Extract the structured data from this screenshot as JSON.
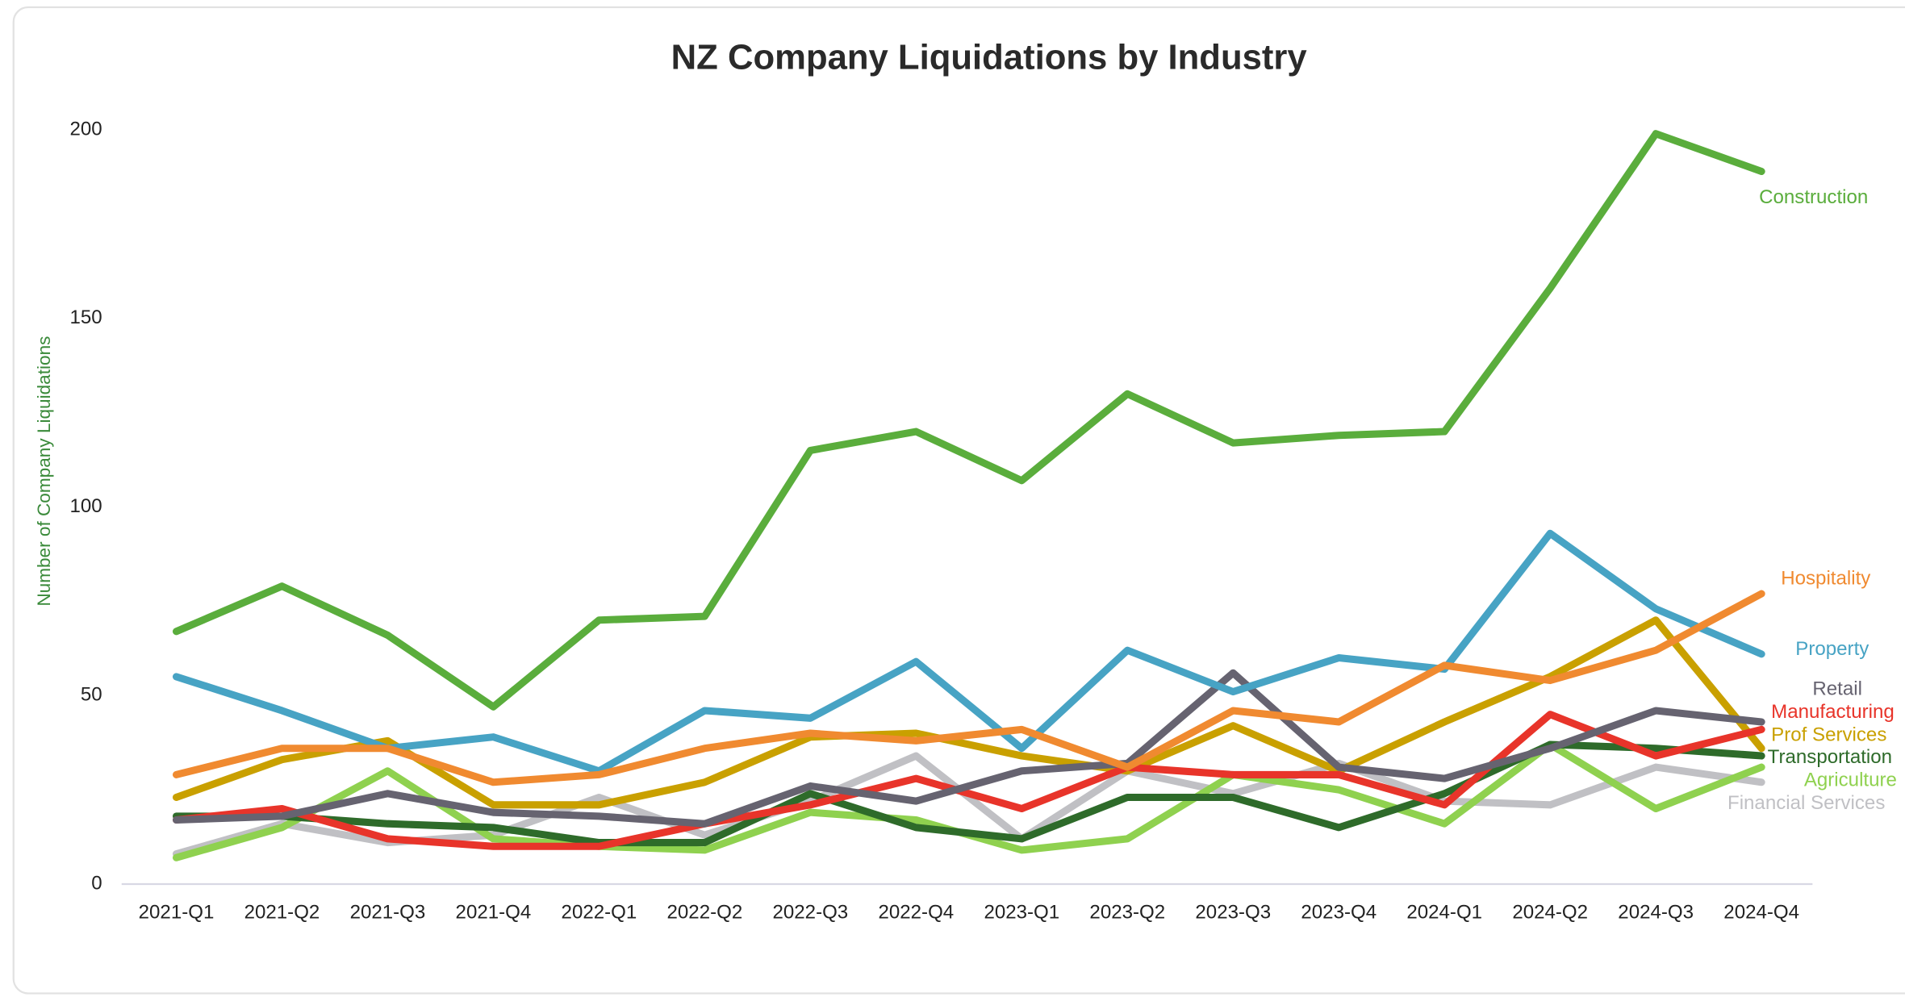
{
  "chart_data": {
    "type": "line",
    "title": "NZ Company Liquidations by Industry",
    "y_label": "Number of Company Liquidations",
    "categories": [
      "2021-Q1",
      "2021-Q2",
      "2021-Q3",
      "2021-Q4",
      "2022-Q1",
      "2022-Q2",
      "2022-Q3",
      "2022-Q4",
      "2023-Q1",
      "2023-Q2",
      "2023-Q3",
      "2023-Q4",
      "2024-Q1",
      "2024-Q2",
      "2024-Q3",
      "2024-Q4"
    ],
    "ylim": [
      0,
      200
    ],
    "yticks": [
      0,
      50,
      100,
      150,
      200
    ],
    "grid": false,
    "series": [
      {
        "name": "Construction",
        "color": "#5aad3c",
        "values": [
          67,
          79,
          66,
          47,
          70,
          71,
          115,
          120,
          107,
          130,
          117,
          119,
          120,
          158,
          199,
          189
        ]
      },
      {
        "name": "Hospitality",
        "color": "#f08a30",
        "values": [
          29,
          36,
          36,
          27,
          29,
          36,
          40,
          38,
          41,
          31,
          46,
          43,
          58,
          54,
          62,
          77
        ]
      },
      {
        "name": "Property",
        "color": "#47a3c4",
        "values": [
          55,
          46,
          36,
          39,
          30,
          46,
          44,
          59,
          36,
          62,
          51,
          60,
          57,
          93,
          73,
          61
        ]
      },
      {
        "name": "Retail",
        "color": "#666370",
        "values": [
          17,
          18,
          24,
          19,
          18,
          16,
          26,
          22,
          30,
          32,
          56,
          31,
          28,
          36,
          46,
          43
        ]
      },
      {
        "name": "Manufacturing",
        "color": "#e8342a",
        "values": [
          17,
          20,
          12,
          10,
          10,
          16,
          21,
          28,
          20,
          31,
          29,
          29,
          21,
          45,
          34,
          41
        ]
      },
      {
        "name": "Prof Services",
        "color": "#c9a000",
        "values": [
          23,
          33,
          38,
          21,
          21,
          27,
          39,
          40,
          34,
          30,
          42,
          30,
          43,
          55,
          70,
          36
        ]
      },
      {
        "name": "Transportation",
        "color": "#2e6b2a",
        "values": [
          18,
          18,
          16,
          15,
          11,
          11,
          24,
          15,
          12,
          23,
          23,
          15,
          24,
          37,
          36,
          34
        ]
      },
      {
        "name": "Agriculture",
        "color": "#8fd14f",
        "values": [
          7,
          15,
          30,
          12,
          10,
          9,
          19,
          17,
          9,
          12,
          29,
          25,
          16,
          37,
          20,
          31
        ]
      },
      {
        "name": "Financial Services",
        "color": "#c0c0c4",
        "values": [
          8,
          16,
          11,
          13,
          23,
          13,
          22,
          34,
          12,
          30,
          24,
          32,
          22,
          21,
          31,
          27
        ]
      }
    ]
  }
}
